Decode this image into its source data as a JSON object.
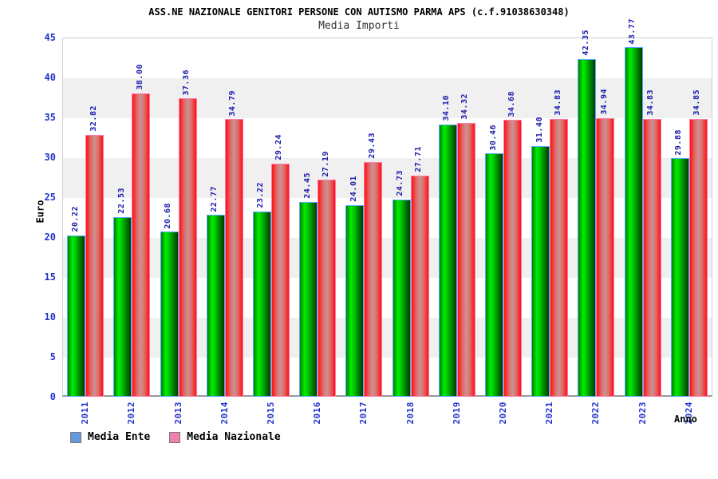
{
  "header": {
    "title": "ASS.NE NAZIONALE GENITORI PERSONE CON AUTISMO PARMA APS (c.f.91038630348)",
    "subtitle": "Media Importi"
  },
  "axes": {
    "y_label": "Euro",
    "x_label": "Anno"
  },
  "legend": {
    "items": [
      {
        "label": "Media Ente",
        "color": "#6699dd"
      },
      {
        "label": "Media Nazionale",
        "color": "#ee82ae"
      }
    ]
  },
  "colors": {
    "bar_ente_main": "#00cc00",
    "bar_ente_border": "#55aaff",
    "bar_naz_main": "#ff1010",
    "bar_naz_border": "#ff7bac",
    "axis_text": "#2233cc",
    "data_label_text": "#1a1aad",
    "band_gray": "#f0f0f0"
  },
  "chart_data": {
    "type": "bar",
    "title": "ASS.NE NAZIONALE GENITORI PERSONE CON AUTISMO PARMA APS (c.f.91038630348)",
    "subtitle": "Media Importi",
    "xlabel": "Anno",
    "ylabel": "Euro",
    "categories": [
      "2011",
      "2012",
      "2013",
      "2014",
      "2015",
      "2016",
      "2017",
      "2018",
      "2019",
      "2020",
      "2021",
      "2022",
      "2023",
      "2024"
    ],
    "series": [
      {
        "name": "Media Ente",
        "values": [
          20.22,
          22.53,
          20.68,
          22.77,
          23.22,
          24.45,
          24.01,
          24.73,
          34.1,
          30.46,
          31.4,
          42.35,
          43.77,
          29.88
        ]
      },
      {
        "name": "Media Nazionale",
        "values": [
          32.82,
          38.0,
          37.36,
          34.79,
          29.24,
          27.19,
          29.43,
          27.71,
          34.32,
          34.68,
          34.83,
          34.94,
          34.83,
          34.85
        ]
      }
    ],
    "ylim": [
      0,
      45
    ],
    "yticks": [
      0,
      5,
      10,
      15,
      20,
      25,
      30,
      35,
      40,
      45
    ],
    "grid": "alternating-horizontal-bands",
    "legend_position": "bottom-left",
    "value_labels": "rotated-90-above-bars",
    "x_tick_labels": "rotated-90"
  }
}
